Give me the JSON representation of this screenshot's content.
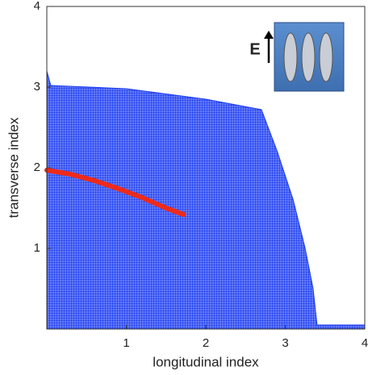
{
  "chart_data": {
    "type": "area",
    "xlabel": "longitudinal index",
    "ylabel": "transverse index",
    "inset_label": "E",
    "xlim": [
      0,
      4
    ],
    "ylim": [
      0,
      4
    ],
    "xticks": [
      1,
      2,
      3,
      4
    ],
    "yticks": [
      1,
      2,
      3,
      4
    ],
    "series": [
      {
        "style": "fill",
        "color": "#1a3cf0",
        "x": [
          0,
          0.0,
          0.05,
          1.0,
          2.0,
          2.7,
          2.9,
          3.1,
          3.25,
          3.35,
          3.4,
          4.0,
          4.0
        ],
        "values": [
          0,
          3.2,
          3.02,
          2.98,
          2.85,
          2.72,
          2.2,
          1.6,
          1.0,
          0.5,
          0.05,
          0.05,
          0
        ]
      },
      {
        "style": "line",
        "color": "#ee2a1a",
        "x": [
          0,
          0.3,
          0.6,
          0.9,
          1.2,
          1.5,
          1.72
        ],
        "values": [
          1.97,
          1.92,
          1.84,
          1.74,
          1.63,
          1.5,
          1.42
        ]
      }
    ]
  }
}
